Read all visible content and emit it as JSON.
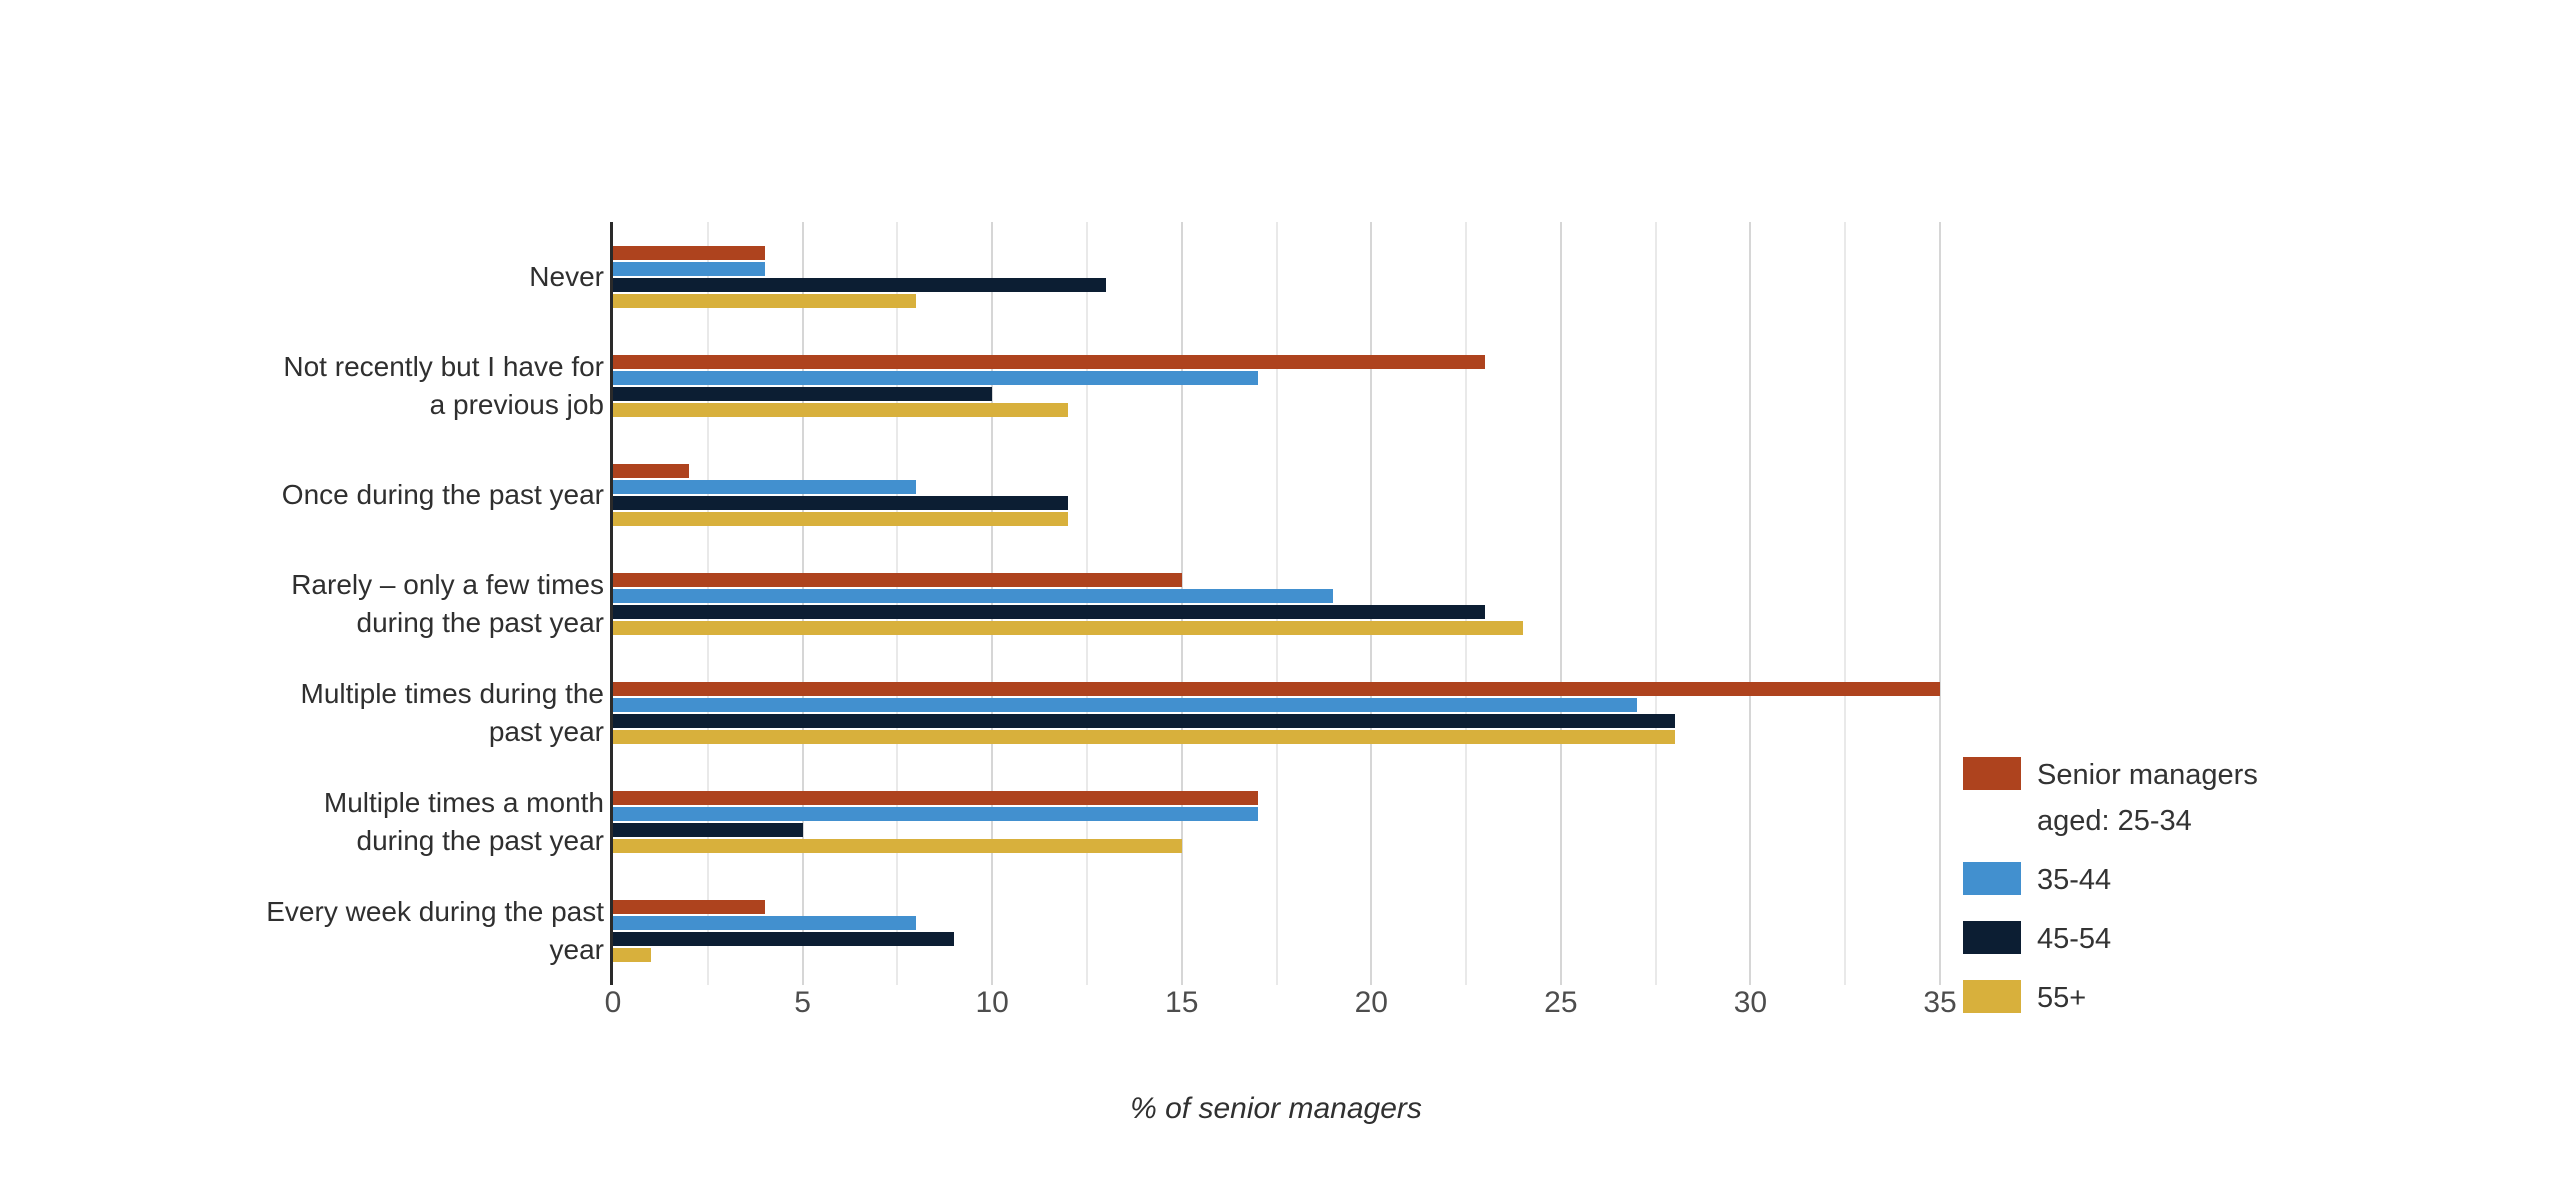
{
  "chart_data": {
    "type": "bar",
    "orientation": "horizontal",
    "title": "",
    "xlabel": "% of senior managers",
    "xlim": [
      0,
      35
    ],
    "x_ticks": [
      0,
      5,
      10,
      15,
      20,
      25,
      30,
      35
    ],
    "gridline_step": 2.5,
    "grid": true,
    "legend_position": "right",
    "categories": [
      {
        "label": "Never",
        "lines": [
          "Never"
        ]
      },
      {
        "label": "Not recently but I have for a previous job",
        "lines": [
          "Not recently but I have for",
          "a previous job"
        ]
      },
      {
        "label": "Once during the past year",
        "lines": [
          "Once during the past year"
        ]
      },
      {
        "label": "Rarely – only a few times during the past year",
        "lines": [
          "Rarely – only a few times",
          "during the past year"
        ]
      },
      {
        "label": "Multiple times during the past year",
        "lines": [
          "Multiple times during the",
          "past year"
        ]
      },
      {
        "label": "Multiple times a month during the past year",
        "lines": [
          "Multiple times a month",
          "during the past year"
        ]
      },
      {
        "label": "Every week during the past year",
        "lines": [
          "Every week during the past",
          "year"
        ]
      }
    ],
    "series": [
      {
        "name": "Senior managers aged: 25-34",
        "legend_lines": [
          "Senior managers",
          "aged: 25-34"
        ],
        "color": "#AE431E",
        "values": [
          4,
          23,
          2,
          15,
          35,
          17,
          4
        ]
      },
      {
        "name": "35-44",
        "legend_lines": [
          "35-44"
        ],
        "color": "#4290CF",
        "values": [
          4,
          17,
          8,
          19,
          27,
          17,
          8
        ]
      },
      {
        "name": "45-54",
        "legend_lines": [
          "45-54"
        ],
        "color": "#0C1E33",
        "values": [
          13,
          10,
          12,
          23,
          28,
          5,
          9
        ]
      },
      {
        "name": "55+",
        "legend_lines": [
          "55+"
        ],
        "color": "#D8B03C",
        "values": [
          8,
          12,
          12,
          24,
          28,
          15,
          1
        ]
      }
    ]
  }
}
